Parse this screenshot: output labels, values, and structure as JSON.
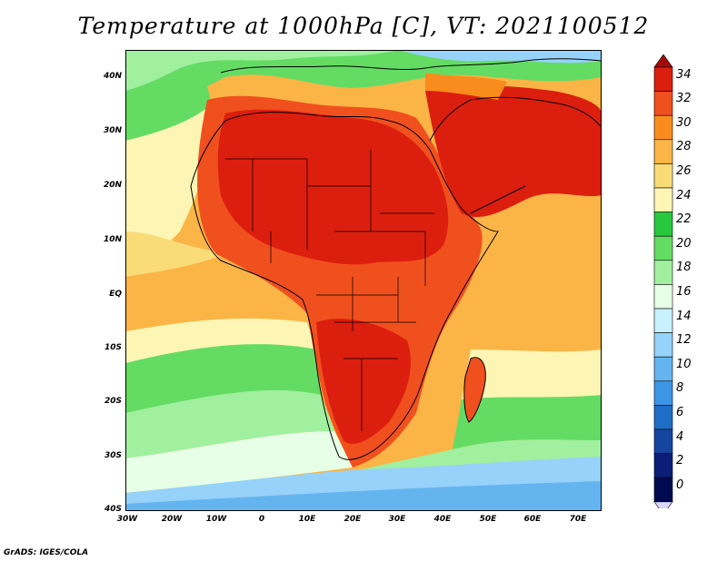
{
  "title": "Temperature at 1000hPa [C], VT: 2021100512",
  "credit": "GrADS: IGES/COLA",
  "map": {
    "variable": "Temperature at 1000hPa",
    "units": "C",
    "lon_range": [
      -30,
      75
    ],
    "lat_range": [
      -40,
      45
    ],
    "lat_ticks": [
      "40N",
      "30N",
      "20N",
      "10N",
      "EQ",
      "10S",
      "20S",
      "30S",
      "40S"
    ],
    "lon_ticks": [
      "30W",
      "20W",
      "10W",
      "0",
      "10E",
      "20E",
      "30E",
      "40E",
      "50E",
      "60E",
      "70E"
    ]
  },
  "colorbar": {
    "levels": [
      "34",
      "32",
      "30",
      "28",
      "26",
      "24",
      "22",
      "20",
      "18",
      "16",
      "14",
      "12",
      "10",
      "8",
      "6",
      "4",
      "2",
      "0"
    ],
    "colors": [
      "#a50a0a",
      "#dc1e0e",
      "#f0501e",
      "#fa8c1e",
      "#fbb446",
      "#f9dc78",
      "#fdf5b4",
      "#28c83c",
      "#64dc64",
      "#a0f0a0",
      "#e6ffe6",
      "#c8f0ff",
      "#96d2fa",
      "#64b4f0",
      "#3c96e6",
      "#1e6ec8",
      "#1446a0",
      "#0a1e78",
      "#000a50",
      "#d8d8ff"
    ]
  }
}
